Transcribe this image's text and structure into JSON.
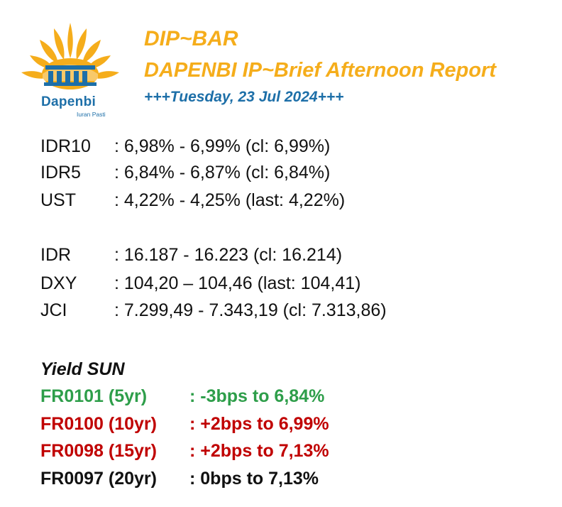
{
  "logo": {
    "brand": "Dapenbi",
    "tagline": "Iuran Pasti"
  },
  "header": {
    "title": "DIP~BAR",
    "subtitle": "DAPENBI IP~Brief Afternoon Report",
    "date": "+++Tuesday, 23 Jul 2024+++"
  },
  "rates": [
    {
      "label": "IDR10",
      "value": ": 6,98% - 6,99% (cl: 6,99%)"
    },
    {
      "label": "IDR5",
      "value": ": 6,84% - 6,87% (cl: 6,84%)"
    },
    {
      "label": "UST",
      "value": ": 4,22% - 4,25% (last: 4,22%)"
    }
  ],
  "markets": [
    {
      "label": "IDR",
      "value": ": 16.187 - 16.223 (cl: 16.214)"
    },
    {
      "label": "DXY",
      "value": ": 104,20 – 104,46 (last: 104,41)"
    },
    {
      "label": "JCI",
      "value": ": 7.299,49 - 7.343,19 (cl: 7.313,86)"
    }
  ],
  "yield": {
    "title": "Yield SUN",
    "items": [
      {
        "label": "FR0101 (5yr)",
        "value": ": -3bps to 6,84%",
        "color": "#2e9e4a"
      },
      {
        "label": "FR0100 (10yr)",
        "value": ": +2bps to 6,99%",
        "color": "#c00000"
      },
      {
        "label": "FR0098 (15yr)",
        "value": ": +2bps to 7,13%",
        "color": "#c00000"
      },
      {
        "label": "FR0097 (20yr)",
        "value": ": 0bps to 7,13%",
        "color": "#111111"
      }
    ]
  },
  "colors": {
    "accent": "#f5ad1b",
    "brand_blue": "#1d6fa8",
    "positive": "#2e9e4a",
    "negative": "#c00000"
  }
}
